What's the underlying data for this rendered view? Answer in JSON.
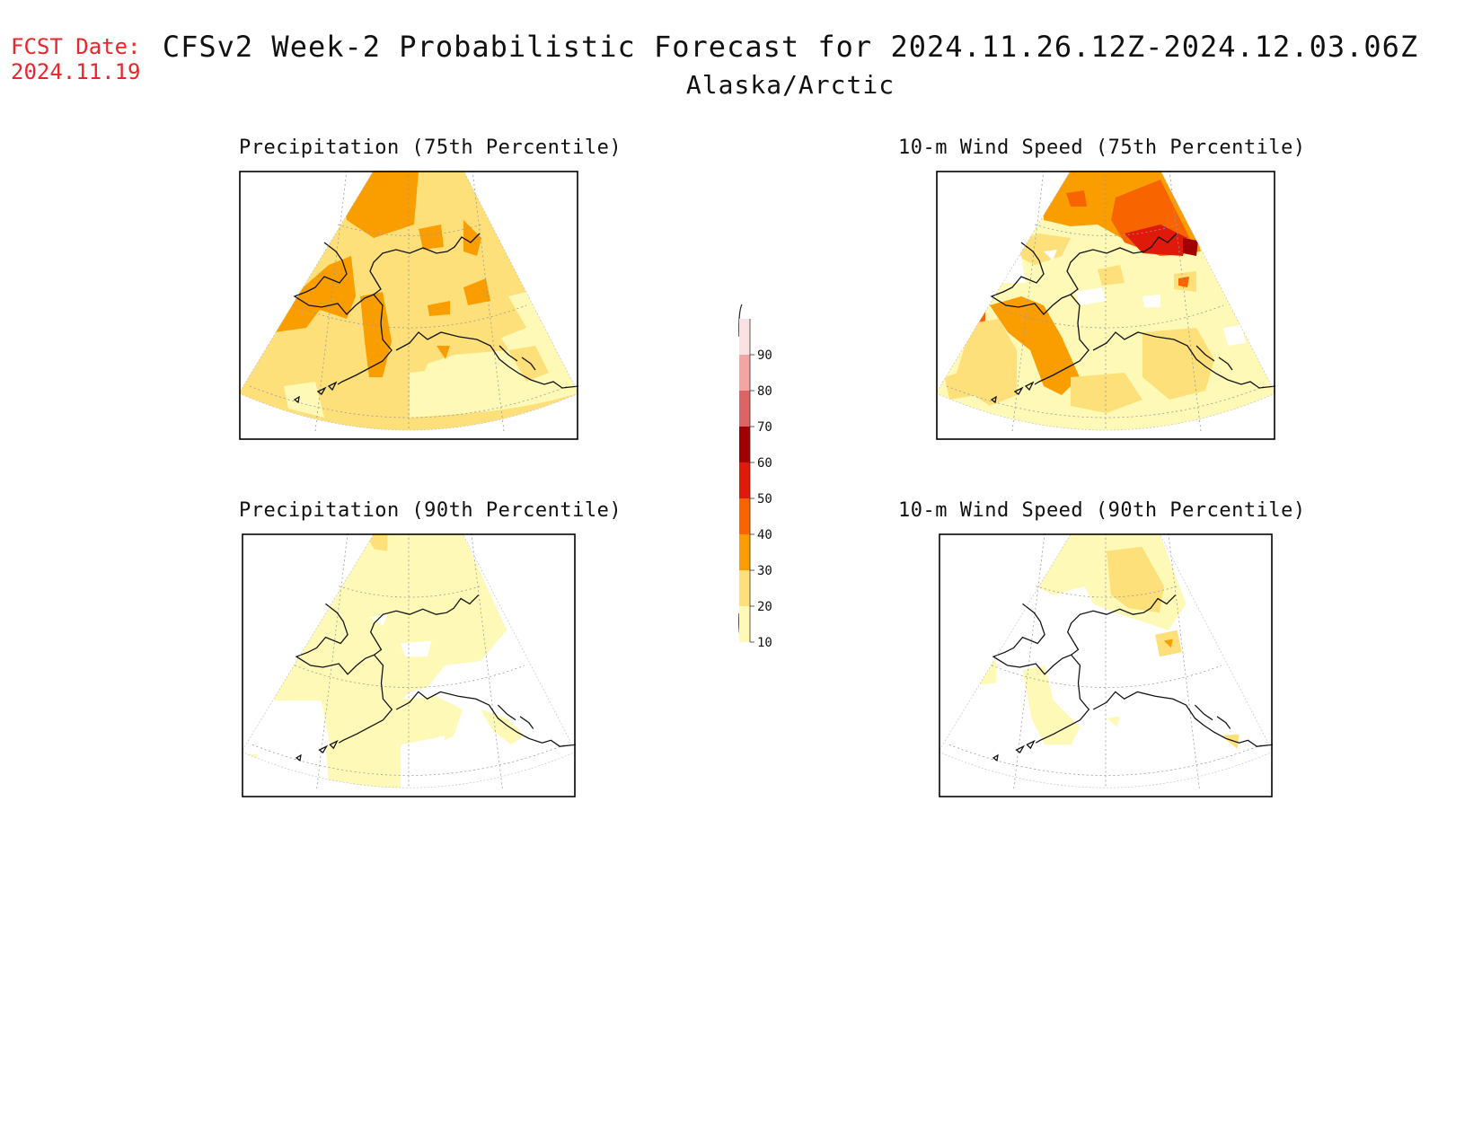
{
  "header": {
    "fcst_label": "FCST Date:",
    "fcst_date": "2024.11.19",
    "title": "CFSv2 Week-2 Probabilistic Forecast for 2024.11.26.12Z-2024.12.03.06Z",
    "subtitle": "Alaska/Arctic"
  },
  "panels": [
    {
      "id": "precip75",
      "title": "Precipitation (75th Percentile)"
    },
    {
      "id": "wind75",
      "title": "10-m Wind Speed (75th Percentile)"
    },
    {
      "id": "precip90",
      "title": "Precipitation (90th Percentile)"
    },
    {
      "id": "wind90",
      "title": "10-m Wind Speed (90th Percentile)"
    }
  ],
  "legend": {
    "ticks": [
      "90",
      "80",
      "70",
      "60",
      "50",
      "40",
      "30",
      "20",
      "10"
    ],
    "colors": [
      "#fbe2e2",
      "#f4a4a4",
      "#db6464",
      "#a00000",
      "#e01a0a",
      "#f86400",
      "#fa9e00",
      "#fde07a",
      "#fef9b6"
    ]
  },
  "colors": {
    "c10": "#fef9b6",
    "c20": "#fde07a",
    "c30": "#fa9e00",
    "c40": "#f86400",
    "c50": "#e01a0a",
    "c60": "#a00000",
    "fcst_red": "#e8262b"
  }
}
